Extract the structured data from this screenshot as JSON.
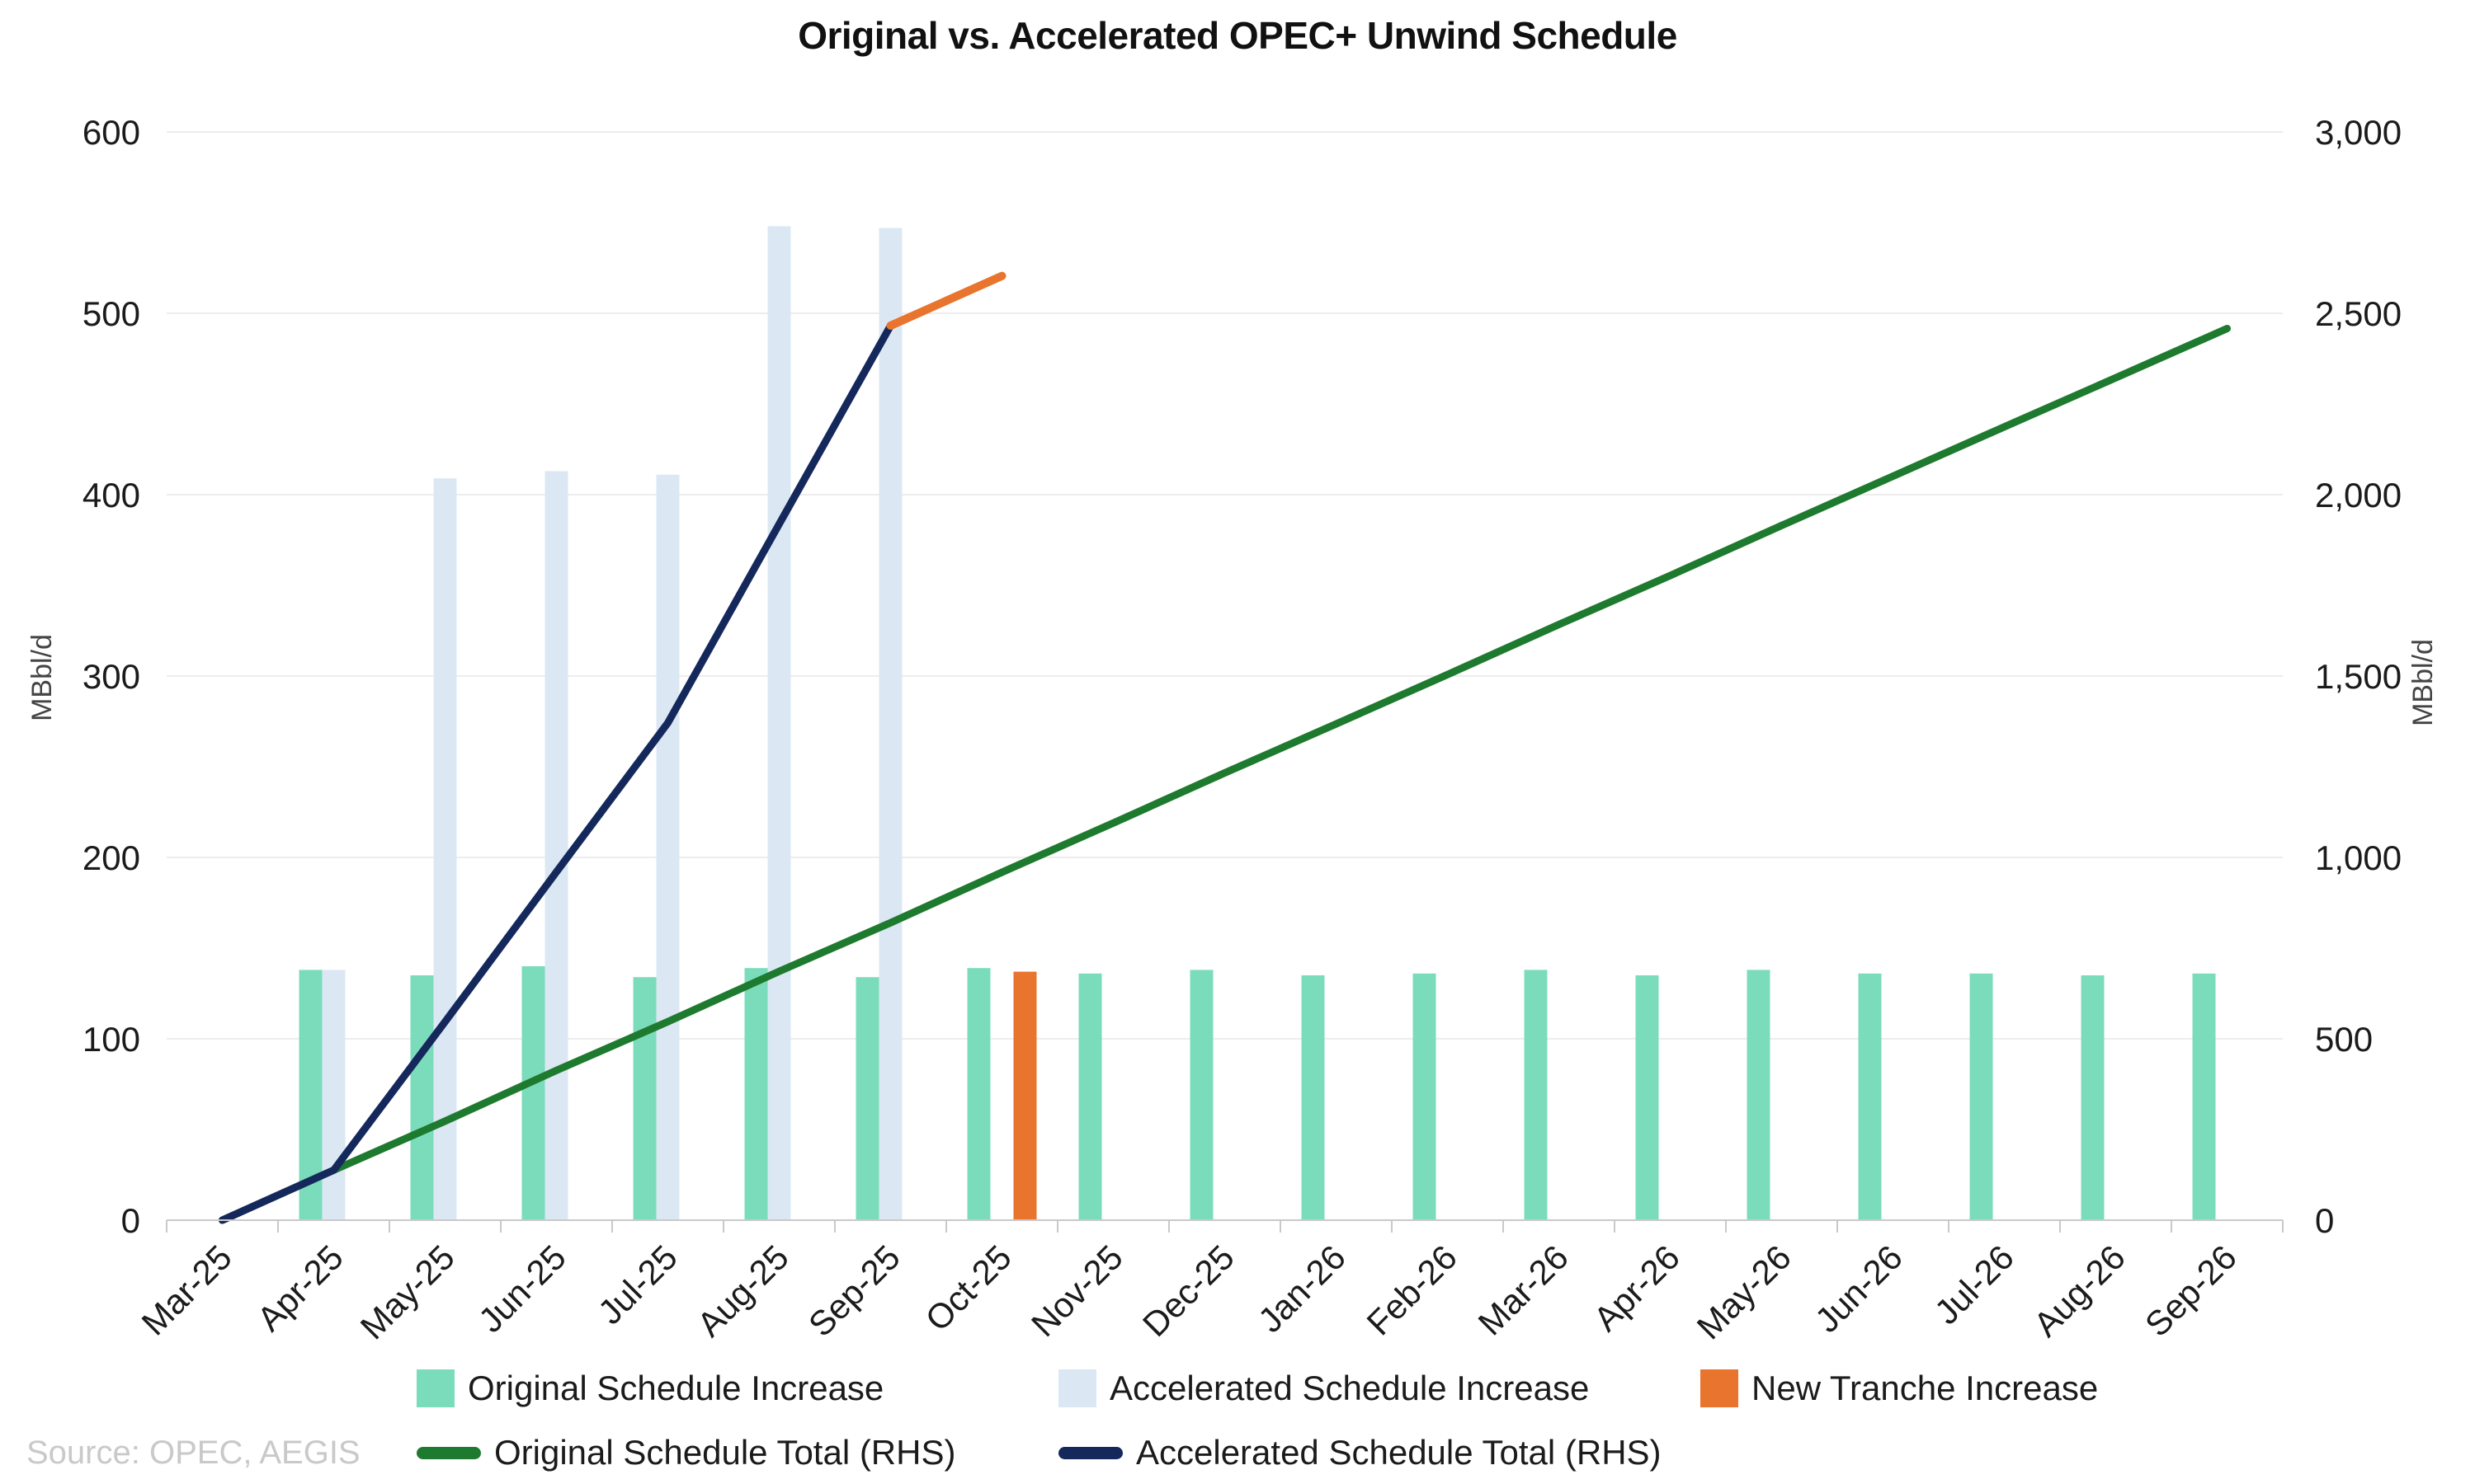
{
  "title": "Original vs. Accelerated OPEC+ Unwind Schedule",
  "source": "Source: OPEC, AEGIS",
  "colors": {
    "original_increase_bar": "#7bdcbc",
    "accelerated_increase_bar": "#dbe8f4",
    "new_tranche_bar": "#e8742e",
    "original_total_line": "#1e7a2e",
    "accelerated_total_line": "#14285c",
    "new_tranche_line": "#e8742e",
    "gridline": "#ededed",
    "axis_line": "#c9c9c9",
    "tick_text": "#1b1b1b",
    "axis_unit_text": "#444444",
    "source_text": "#c9c9c9"
  },
  "legend": {
    "items": [
      {
        "label": "Original Schedule Increase",
        "shape": "square",
        "color": "#7bdcbc"
      },
      {
        "label": "Accelerated Schedule Increase",
        "shape": "square",
        "color": "#dbe8f4"
      },
      {
        "label": "New Tranche Increase",
        "shape": "square",
        "color": "#e8742e"
      },
      {
        "label": "Original Schedule Total (RHS)",
        "shape": "line",
        "color": "#1e7a2e"
      },
      {
        "label": "Accelerated Schedule Total (RHS)",
        "shape": "line",
        "color": "#14285c"
      }
    ]
  },
  "chart_data": {
    "type": "bar",
    "subtype": "combo-bar-line-dual-axis",
    "title": "Original vs. Accelerated OPEC+ Unwind Schedule",
    "grid": true,
    "legend_position": "bottom",
    "categories": [
      "Mar-25",
      "Apr-25",
      "May-25",
      "Jun-25",
      "Jul-25",
      "Aug-25",
      "Sep-25",
      "Oct-25",
      "Nov-25",
      "Dec-25",
      "Jan-26",
      "Feb-26",
      "Mar-26",
      "Apr-26",
      "May-26",
      "Jun-26",
      "Jul-26",
      "Aug-26",
      "Sep-26"
    ],
    "left_axis": {
      "label": "MBbl/d",
      "min": 0,
      "max": 600,
      "tick_values": [
        0,
        100,
        200,
        300,
        400,
        500,
        600
      ],
      "tick_labels": [
        "0",
        "100",
        "200",
        "300",
        "400",
        "500",
        "600"
      ]
    },
    "right_axis": {
      "label": "MBbl/d",
      "min": 0,
      "max": 3000,
      "tick_values": [
        0,
        500,
        1000,
        1500,
        2000,
        2500,
        3000
      ],
      "tick_labels": [
        "0",
        "500",
        "1,000",
        "1,500",
        "2,000",
        "2,500",
        "3,000"
      ]
    },
    "bar_series": [
      {
        "name": "Original Schedule Increase",
        "axis": "left",
        "slot": 0,
        "color": "#7bdcbc",
        "values": [
          null,
          138,
          135,
          140,
          134,
          139,
          134,
          139,
          136,
          138,
          135,
          136,
          138,
          135,
          138,
          136,
          136,
          135,
          136
        ]
      },
      {
        "name": "Accelerated Schedule Increase",
        "axis": "left",
        "slot": 1,
        "color": "#dbe8f4",
        "values": [
          null,
          138,
          409,
          413,
          411,
          548,
          547,
          null,
          null,
          null,
          null,
          null,
          null,
          null,
          null,
          null,
          null,
          null,
          null
        ]
      },
      {
        "name": "New Tranche Increase",
        "axis": "left",
        "slot": 2,
        "color": "#e8742e",
        "values": [
          null,
          null,
          null,
          null,
          null,
          null,
          null,
          137,
          null,
          null,
          null,
          null,
          null,
          null,
          null,
          null,
          null,
          null,
          null
        ]
      }
    ],
    "line_series": [
      {
        "name": "Original Schedule Total (RHS)",
        "axis": "right",
        "color": "#1e7a2e",
        "stroke_width": 9,
        "values": [
          0,
          138,
          273,
          413,
          547,
          686,
          820,
          959,
          1095,
          1233,
          1368,
          1504,
          1642,
          1777,
          1915,
          2051,
          2187,
          2322,
          2458
        ]
      },
      {
        "name": "Accelerated Schedule Total (RHS)",
        "axis": "right",
        "color": "#14285c",
        "stroke_width": 9,
        "values": [
          0,
          138,
          547,
          960,
          1371,
          1919,
          2466,
          null,
          null,
          null,
          null,
          null,
          null,
          null,
          null,
          null,
          null,
          null,
          null
        ]
      },
      {
        "name": "new-tranche-total-continuation",
        "axis": "right",
        "color": "#e8742e",
        "stroke_width": 10,
        "values": [
          null,
          null,
          null,
          null,
          null,
          null,
          2466,
          2603,
          null,
          null,
          null,
          null,
          null,
          null,
          null,
          null,
          null,
          null,
          null
        ]
      }
    ]
  }
}
